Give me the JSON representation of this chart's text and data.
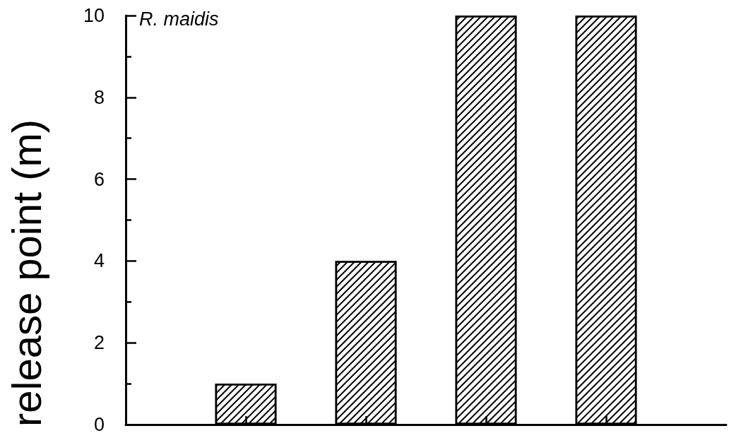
{
  "chart_data": {
    "type": "bar",
    "title": "R. maidis",
    "ylabel": "release point (m)",
    "categories": [
      null,
      null,
      null,
      null
    ],
    "values": [
      1,
      4,
      10,
      10
    ],
    "color": "#000000",
    "ylim": [
      0,
      10
    ],
    "yticks": [
      0,
      {
        "value": 1,
        "label": null
      },
      2,
      {
        "value": 3,
        "label": null
      },
      4,
      {
        "value": 5,
        "label": null
      },
      6,
      {
        "value": 7,
        "label": null
      },
      8,
      {
        "value": 9,
        "label": null
      },
      10
    ]
  }
}
